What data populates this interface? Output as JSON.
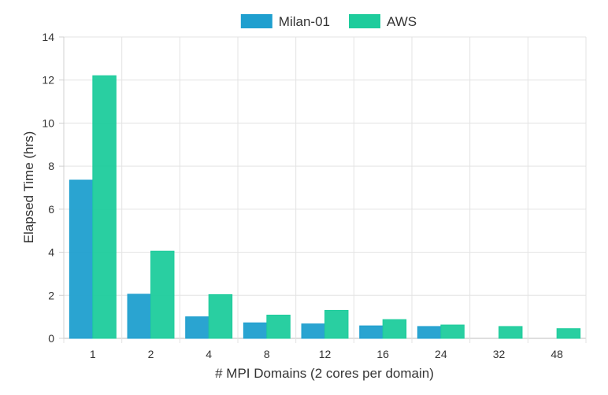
{
  "chart_data": {
    "type": "bar",
    "categories": [
      "1",
      "2",
      "4",
      "8",
      "12",
      "16",
      "24",
      "32",
      "48"
    ],
    "series": [
      {
        "name": "Milan-01",
        "color": "#1f9fcf",
        "values": [
          7.35,
          2.05,
          1.0,
          0.72,
          0.67,
          0.58,
          0.55,
          null,
          null
        ]
      },
      {
        "name": "AWS",
        "color": "#1ecc9c",
        "values": [
          12.2,
          4.05,
          2.03,
          1.08,
          1.3,
          0.87,
          0.62,
          0.55,
          0.45
        ]
      }
    ],
    "title": "",
    "xlabel": "# MPI Domains (2 cores per domain)",
    "ylabel": "Elapsed Time (hrs)",
    "ylim": [
      0,
      14
    ],
    "yticks": [
      0,
      2,
      4,
      6,
      8,
      10,
      12,
      14
    ],
    "grid": true,
    "legend_position": "top-center"
  }
}
